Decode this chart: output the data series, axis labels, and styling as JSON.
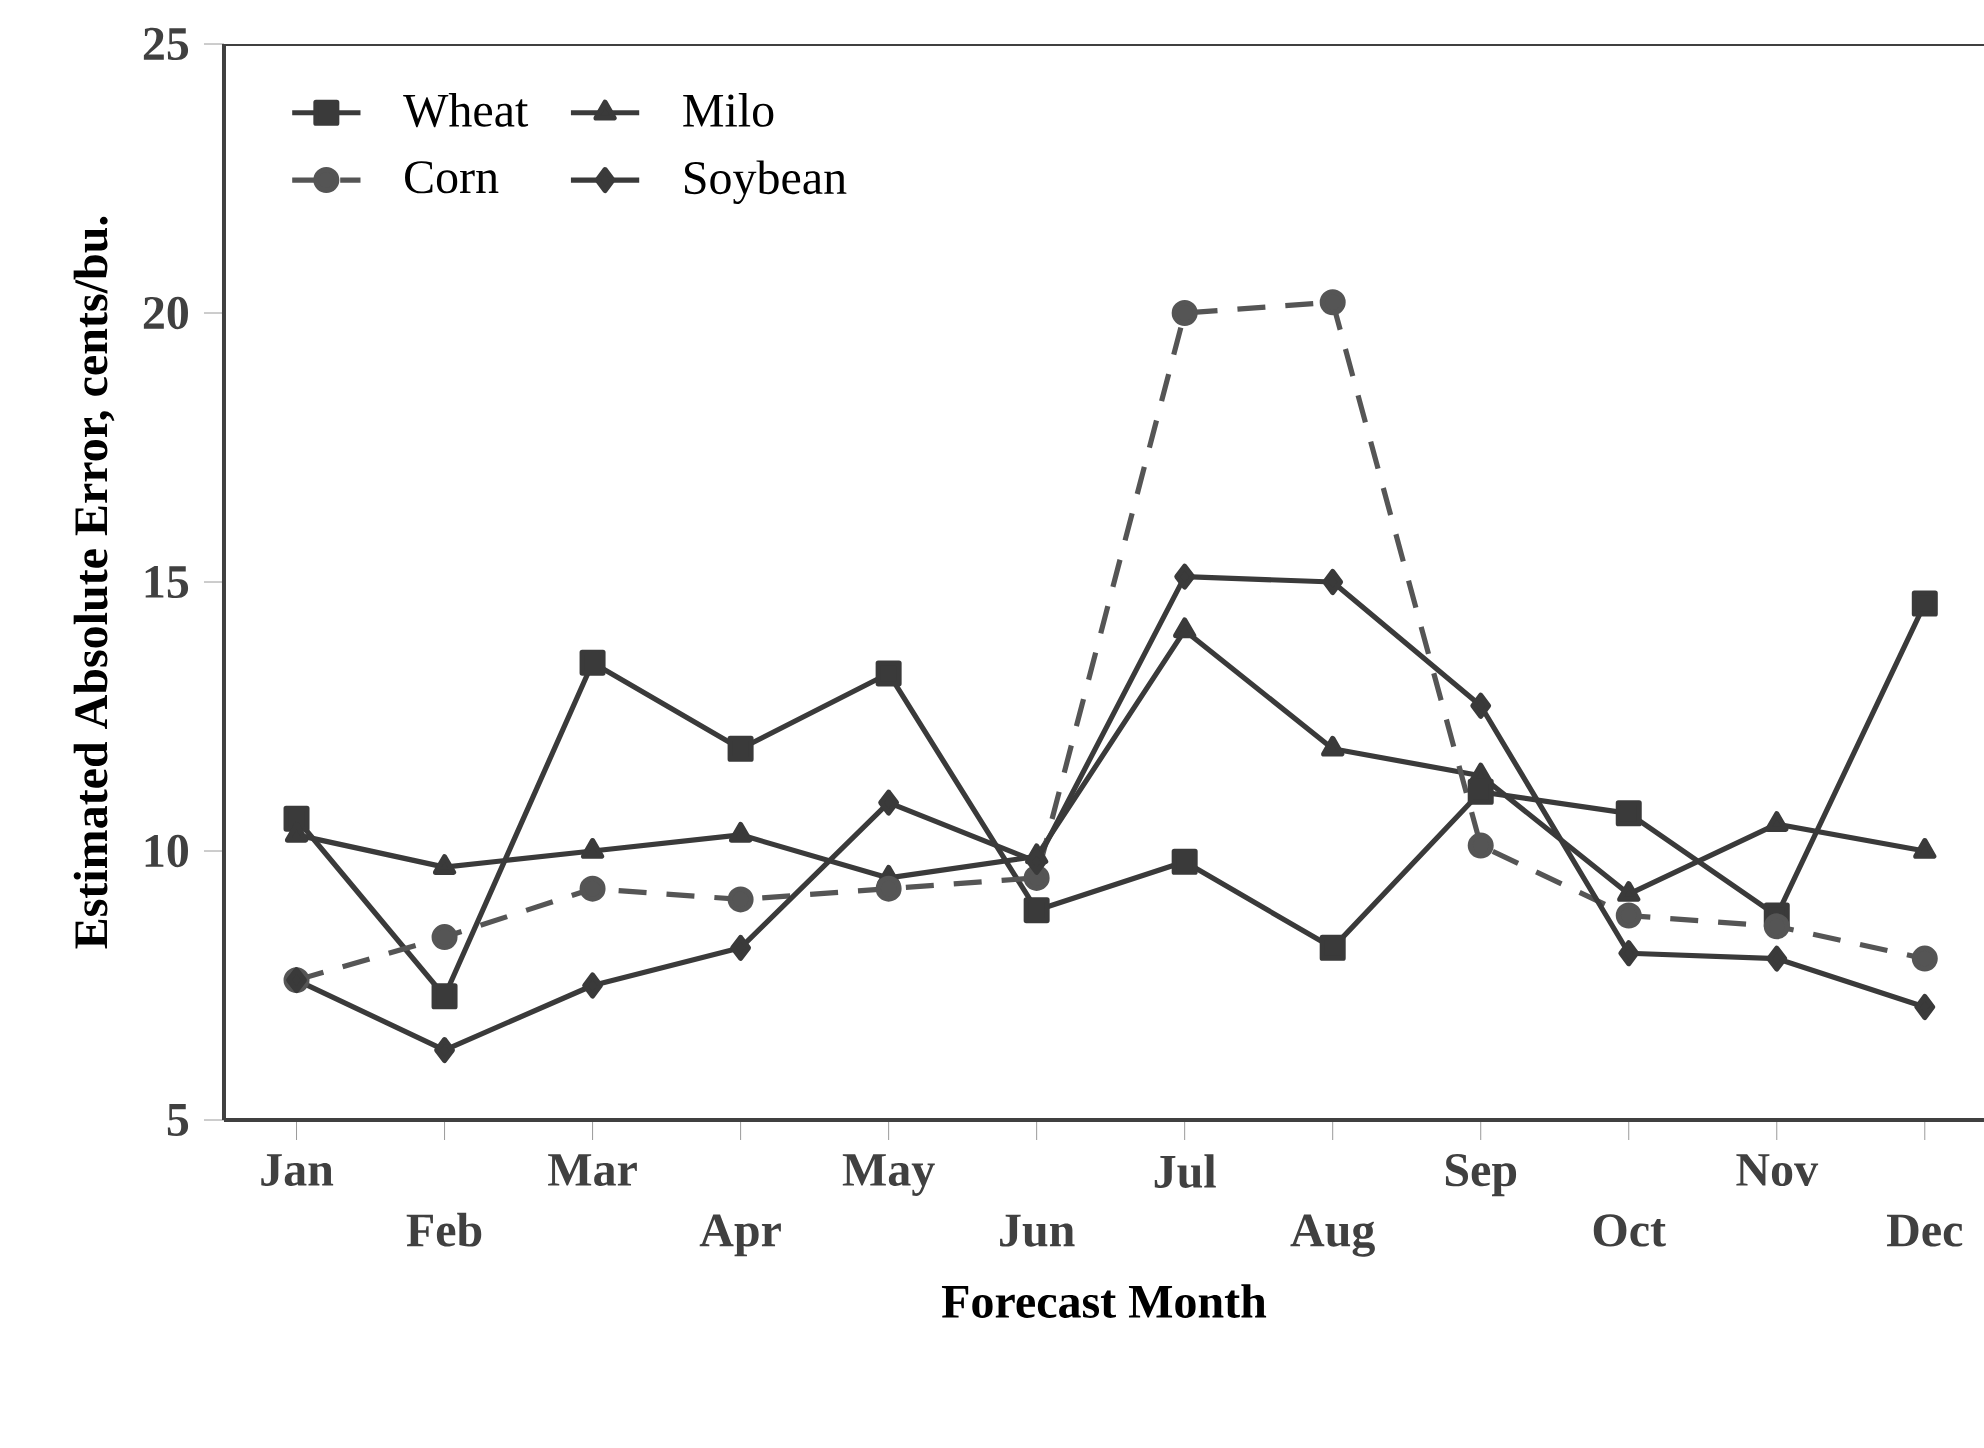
{
  "chart_data": {
    "type": "line",
    "xlabel": "Forecast Month",
    "ylabel": "Estimated Absolute Error, cents/bu.",
    "categories": [
      "Jan",
      "Feb",
      "Mar",
      "Apr",
      "May",
      "Jun",
      "Jul",
      "Aug",
      "Sep",
      "Oct",
      "Nov",
      "Dec"
    ],
    "ylim": [
      5,
      25
    ],
    "yticks": [
      5,
      10,
      15,
      20,
      25
    ],
    "grid": false,
    "legend": "top left",
    "series": [
      {
        "name": "Wheat",
        "color": "#3a3a3a",
        "marker": "square",
        "line_style": "solid",
        "values": [
          10.6,
          7.3,
          13.5,
          11.9,
          13.3,
          8.9,
          9.8,
          8.2,
          11.1,
          10.7,
          8.8,
          14.6
        ]
      },
      {
        "name": "Milo",
        "color": "#3a3a3a",
        "marker": "triangle",
        "line_style": "solid",
        "values": [
          10.3,
          9.7,
          10.0,
          10.3,
          9.5,
          9.9,
          14.1,
          11.9,
          11.4,
          9.2,
          10.5,
          10.0
        ]
      },
      {
        "name": "Corn",
        "color": "#555555",
        "marker": "circle",
        "line_style": "dashed",
        "values": [
          7.6,
          8.4,
          9.3,
          9.1,
          9.3,
          9.5,
          20.0,
          20.2,
          10.1,
          8.8,
          8.6,
          8.0
        ]
      },
      {
        "name": "Soybean",
        "color": "#3a3a3a",
        "marker": "diamond",
        "line_style": "solid",
        "values": [
          7.6,
          6.3,
          7.5,
          8.2,
          10.9,
          9.8,
          15.1,
          15.0,
          12.7,
          8.1,
          8.0,
          7.1
        ]
      }
    ]
  }
}
